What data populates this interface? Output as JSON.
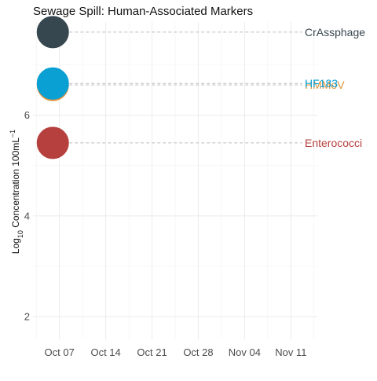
{
  "chart_data": {
    "type": "scatter",
    "title": "Sewage Spill: Human-Associated Markers",
    "ylabel": {
      "prefix": "Log",
      "sub": "10",
      "mid": " Concentration 100mL",
      "sup": "−1"
    },
    "xlabel": "",
    "x_ticks": [
      "Oct 07",
      "Oct 14",
      "Oct 21",
      "Oct 28",
      "Nov 04",
      "Nov 11"
    ],
    "x_tick_dates": [
      "2023-10-07",
      "2023-10-14",
      "2023-10-21",
      "2023-10-28",
      "2023-11-04",
      "2023-11-11"
    ],
    "xlim": [
      "2023-10-03",
      "2023-11-15"
    ],
    "y_ticks": [
      2,
      4,
      6
    ],
    "ylim": [
      1.55,
      7.85
    ],
    "grid": true,
    "legend": "none (series labelled at right end of dashed guide lines)",
    "series": [
      {
        "name": "CrAssphage",
        "x": "2023-10-06",
        "y": 7.65,
        "color": "#37474f"
      },
      {
        "name": "HMMoV",
        "x": "2023-10-06",
        "y": 6.6,
        "color": "#e0913a"
      },
      {
        "name": "HF183",
        "x": "2023-10-06",
        "y": 6.63,
        "color": "#0aa0d4"
      },
      {
        "name": "Enterococci",
        "x": "2023-10-06",
        "y": 5.45,
        "color": "#b5403d"
      }
    ]
  }
}
